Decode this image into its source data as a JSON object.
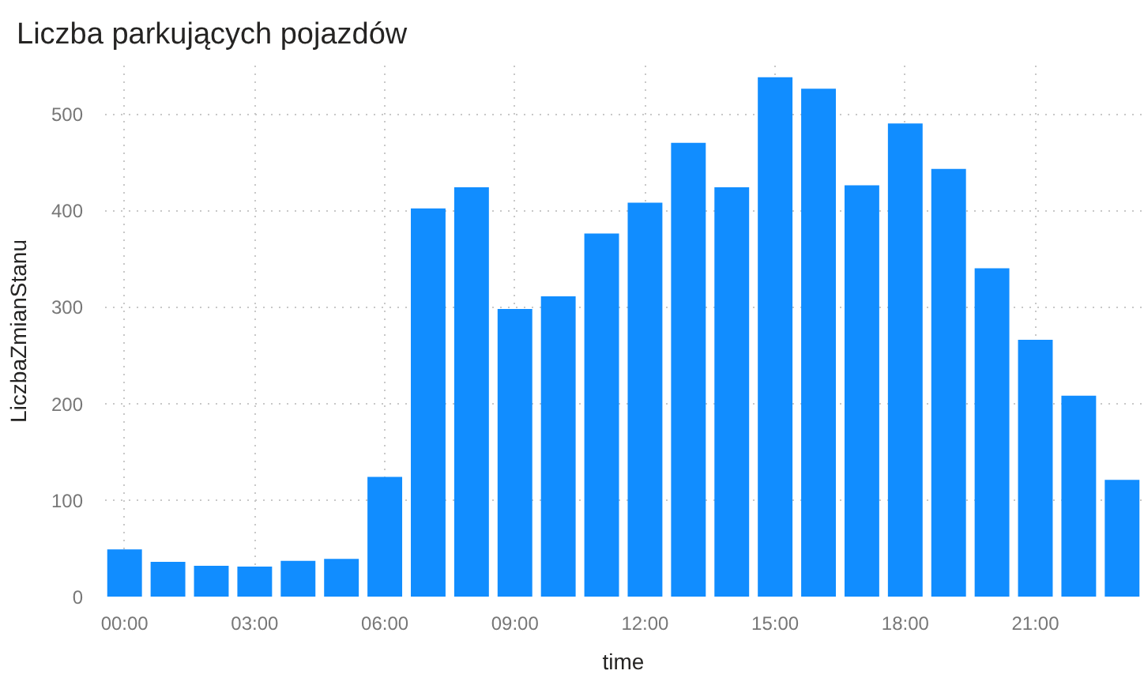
{
  "chart_data": {
    "type": "bar",
    "title": "Liczba parkujących pojazdów",
    "xlabel": "time",
    "ylabel": "LiczbaZmianStanu",
    "x": [
      0,
      1,
      2,
      3,
      4,
      5,
      6,
      7,
      8,
      9,
      10,
      11,
      12,
      13,
      14,
      15,
      16,
      17,
      18,
      19,
      20,
      21,
      22,
      23
    ],
    "values": [
      49,
      36,
      32,
      31,
      37,
      39,
      124,
      402,
      424,
      298,
      311,
      376,
      408,
      470,
      424,
      538,
      526,
      426,
      490,
      443,
      340,
      266,
      208,
      121
    ],
    "color": "#118dff",
    "xlim": [
      -0.45,
      23.45
    ],
    "xticks": [
      {
        "value": 0,
        "label": "00:00"
      },
      {
        "value": 3,
        "label": "03:00"
      },
      {
        "value": 6,
        "label": "06:00"
      },
      {
        "value": 9,
        "label": "09:00"
      },
      {
        "value": 12,
        "label": "12:00"
      },
      {
        "value": 15,
        "label": "15:00"
      },
      {
        "value": 18,
        "label": "18:00"
      },
      {
        "value": 21,
        "label": "21:00"
      }
    ],
    "ylim": [
      0,
      550
    ],
    "yticks": [
      0,
      100,
      200,
      300,
      400,
      500
    ],
    "grid": true
  }
}
